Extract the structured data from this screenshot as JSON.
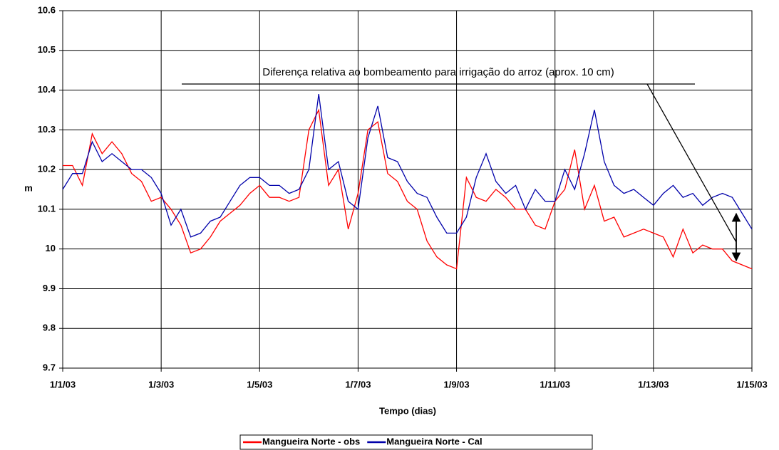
{
  "chart_data": {
    "type": "line",
    "xlabel": "Tempo (dias)",
    "ylabel": "m",
    "annotation": "Diferença relativa ao bombeamento para irrigação do arroz (aprox. 10 cm)",
    "x": [
      0,
      0.2,
      0.4,
      0.6,
      0.8,
      1,
      1.2,
      1.4,
      1.6,
      1.8,
      2,
      2.2,
      2.4,
      2.6,
      2.8,
      3,
      3.2,
      3.4,
      3.6,
      3.8,
      4,
      4.2,
      4.4,
      4.6,
      4.8,
      5,
      5.2,
      5.4,
      5.6,
      5.8,
      6,
      6.2,
      6.4,
      6.6,
      6.8,
      7,
      7.2,
      7.4,
      7.6,
      7.8,
      8,
      8.2,
      8.4,
      8.6,
      8.8,
      9,
      9.2,
      9.4,
      9.6,
      9.8,
      10,
      10.2,
      10.4,
      10.6,
      10.8,
      11,
      11.2,
      11.4,
      11.6,
      11.8,
      12,
      12.2,
      12.4,
      12.6,
      12.8,
      13,
      13.2,
      13.4,
      13.6,
      13.8,
      14
    ],
    "series": [
      {
        "name": "Mangueira Norte - obs",
        "color": "#ff0000",
        "values": [
          10.21,
          10.21,
          10.16,
          10.29,
          10.24,
          10.27,
          10.24,
          10.19,
          10.17,
          10.12,
          10.13,
          10.1,
          10.06,
          9.99,
          10.0,
          10.03,
          10.07,
          10.09,
          10.11,
          10.14,
          10.16,
          10.13,
          10.13,
          10.12,
          10.13,
          10.3,
          10.35,
          10.16,
          10.2,
          10.05,
          10.14,
          10.3,
          10.32,
          10.19,
          10.17,
          10.12,
          10.1,
          10.02,
          9.98,
          9.96,
          9.95,
          10.18,
          10.13,
          10.12,
          10.15,
          10.13,
          10.1,
          10.1,
          10.06,
          10.05,
          10.12,
          10.15,
          10.25,
          10.1,
          10.16,
          10.07,
          10.08,
          10.03,
          10.04,
          10.05,
          10.04,
          10.03,
          9.98,
          10.05,
          9.99,
          10.01,
          10.0,
          10.0,
          9.97,
          9.96,
          9.95
        ]
      },
      {
        "name": "Mangueira Norte - Cal",
        "color": "#0000aa",
        "values": [
          10.15,
          10.19,
          10.19,
          10.27,
          10.22,
          10.24,
          10.22,
          10.2,
          10.2,
          10.18,
          10.14,
          10.06,
          10.1,
          10.03,
          10.04,
          10.07,
          10.08,
          10.12,
          10.16,
          10.18,
          10.18,
          10.16,
          10.16,
          10.14,
          10.15,
          10.2,
          10.39,
          10.2,
          10.22,
          10.12,
          10.1,
          10.28,
          10.36,
          10.23,
          10.22,
          10.17,
          10.14,
          10.13,
          10.08,
          10.04,
          10.04,
          10.08,
          10.18,
          10.24,
          10.17,
          10.14,
          10.16,
          10.1,
          10.15,
          10.12,
          10.12,
          10.2,
          10.15,
          10.24,
          10.35,
          10.22,
          10.16,
          10.14,
          10.15,
          10.13,
          10.11,
          10.14,
          10.16,
          10.13,
          10.14,
          10.11,
          10.13,
          10.14,
          10.13,
          10.09,
          10.05
        ]
      }
    ],
    "xlim": [
      0,
      14
    ],
    "xticks": [
      {
        "value": 0,
        "label": "1/1/03"
      },
      {
        "value": 2,
        "label": "1/3/03"
      },
      {
        "value": 4,
        "label": "1/5/03"
      },
      {
        "value": 6,
        "label": "1/7/03"
      },
      {
        "value": 8,
        "label": "1/9/03"
      },
      {
        "value": 10,
        "label": "1/11/03"
      },
      {
        "value": 12,
        "label": "1/13/03"
      },
      {
        "value": 14,
        "label": "1/15/03"
      }
    ],
    "ylim": [
      9.7,
      10.6
    ],
    "yticks": [
      9.7,
      9.8,
      9.9,
      10,
      10.1,
      10.2,
      10.3,
      10.4,
      10.5,
      10.6
    ],
    "grid": true,
    "legend": "bottom"
  }
}
